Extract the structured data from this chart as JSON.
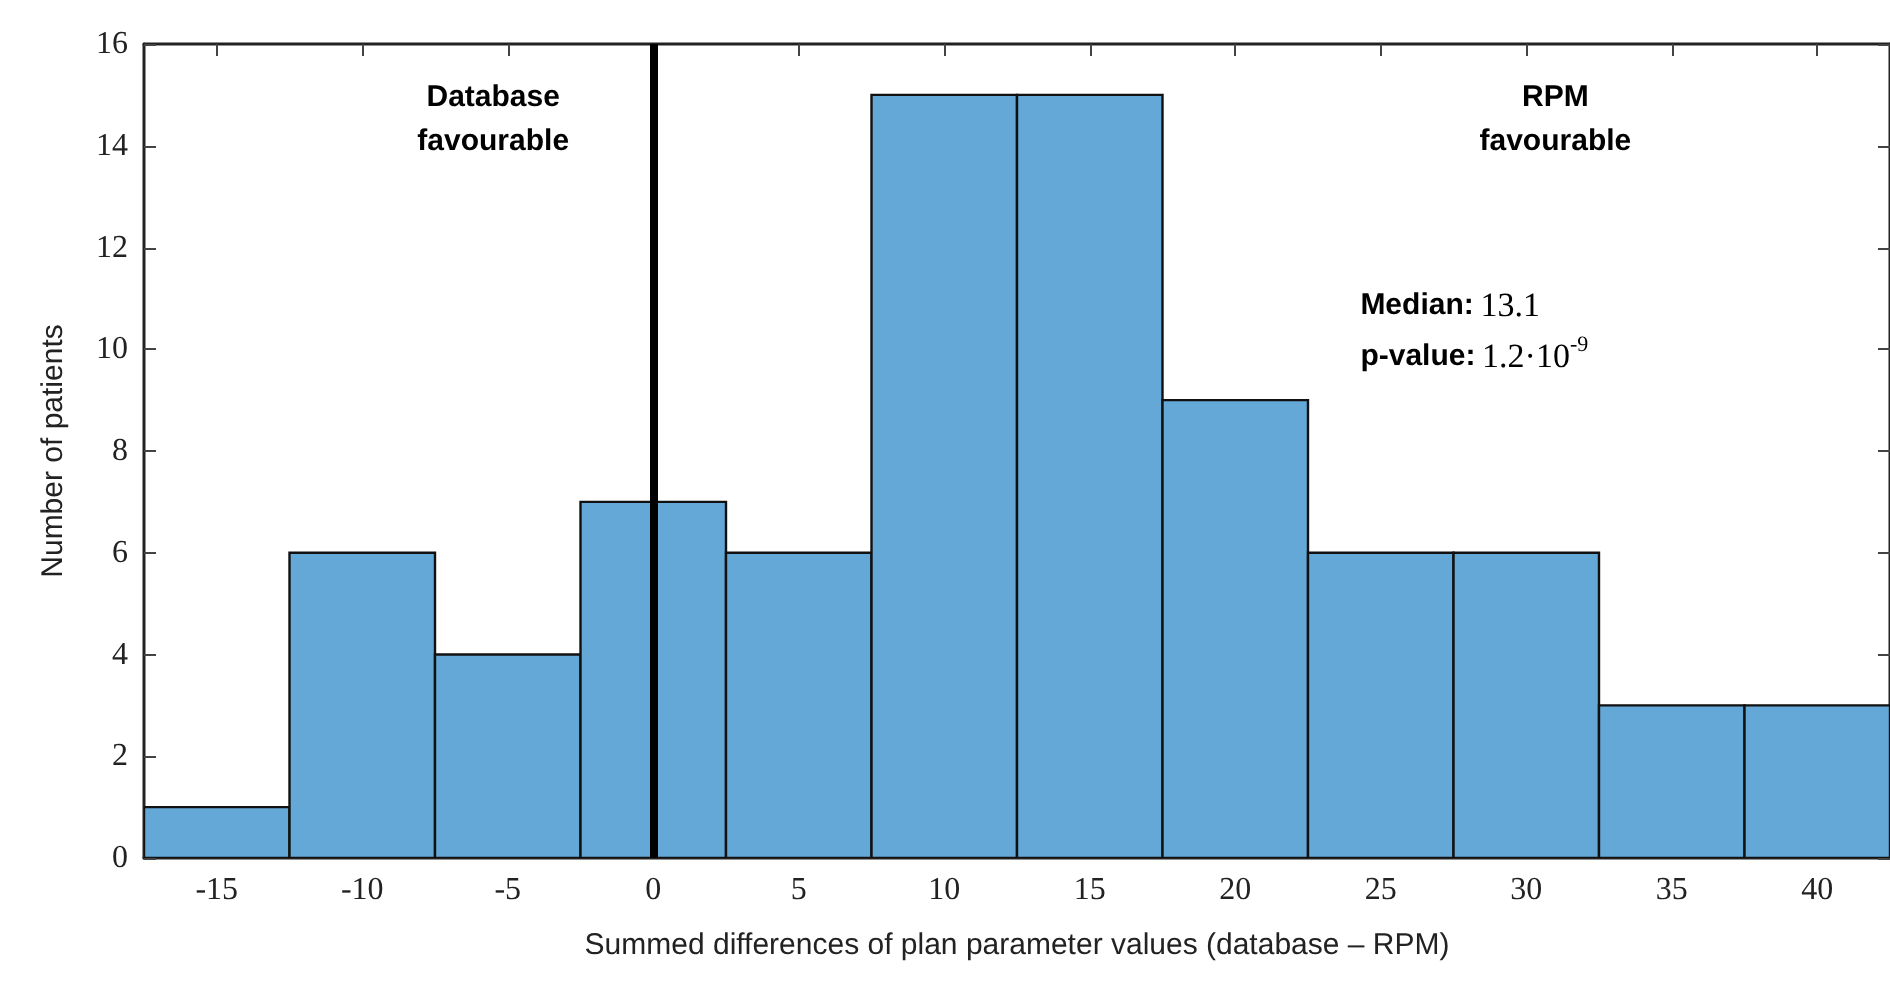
{
  "chart_data": {
    "type": "histogram",
    "xlabel": "Summed differences of plan parameter values (database – RPM)",
    "ylabel": "Number of patients",
    "bins": [
      -17.5,
      -12.5,
      -7.5,
      -2.5,
      2.5,
      7.5,
      12.5,
      17.5,
      22.5,
      27.5,
      32.5,
      37.5,
      42.5
    ],
    "values": [
      1,
      6,
      4,
      7,
      6,
      15,
      15,
      9,
      6,
      6,
      3,
      3
    ],
    "color": "#64a8d8",
    "xlim": [
      -17.5,
      42.5
    ],
    "xticks": [
      -15,
      -10,
      -5,
      0,
      5,
      10,
      15,
      20,
      25,
      30,
      35,
      40
    ],
    "ylim": [
      0,
      16
    ],
    "yticks": [
      0,
      2,
      4,
      6,
      8,
      10,
      12,
      14,
      16
    ],
    "grid": false,
    "ref_lines": [
      {
        "axis": "x",
        "value": 0,
        "color": "#000000"
      }
    ],
    "annotations": [
      "Database\nfavourable",
      "RPM\nfavourable",
      "Median: 13.1",
      "p-value: 1.2·10$^{-9}$"
    ]
  }
}
